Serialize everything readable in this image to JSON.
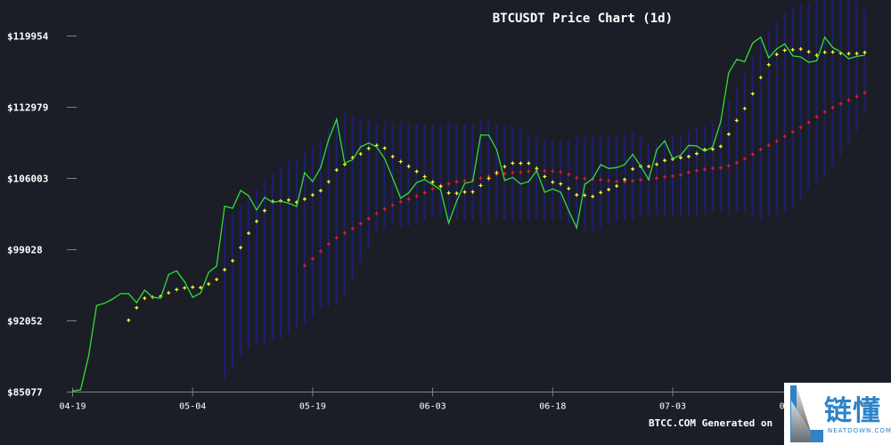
{
  "title": "BTCUSDT Price Chart (1d)",
  "footer": "BTCC.COM Generated on",
  "logo": {
    "cn": "链懂",
    "en": "NEATDOWN.COM"
  },
  "colors": {
    "background": "#1b1e27",
    "price": "#33dd33",
    "short_ma": "#ffff33",
    "long_ma": "#dd2222",
    "band": "#1c1f6e",
    "axis": "#808080",
    "text": "#ffffff",
    "logo_blue": "#2d82c8"
  },
  "chart_data": {
    "type": "line",
    "title": "BTCUSDT Price Chart (1d)",
    "xlabel": "",
    "ylabel": "",
    "x_start": "04-19",
    "x_ticks": [
      "04-19",
      "05-04",
      "05-19",
      "06-03",
      "06-18",
      "07-03",
      "07-18"
    ],
    "y_ticks": [
      "$85077",
      "$92052",
      "$99028",
      "$106003",
      "$112979",
      "$119954"
    ],
    "ylim": [
      85077,
      119954
    ],
    "grid": false,
    "legend": "none",
    "series": [
      {
        "values": [
          85182,
          85295,
          88608,
          93552,
          93779,
          94188,
          94712,
          94712,
          93840,
          95060,
          94363,
          94275,
          96604,
          96952,
          95871,
          94363,
          94773,
          96804,
          97415,
          103282,
          103082,
          104826,
          104302,
          102907,
          104154,
          103666,
          103779,
          103579,
          103256,
          106569,
          105697,
          107066,
          109822,
          111801,
          107502,
          107851,
          109098,
          109473,
          109098,
          107938,
          106046,
          104067,
          104590,
          105610,
          105898,
          105410,
          104887,
          101626,
          103779,
          105523,
          105697,
          110257,
          110257,
          108810,
          105811,
          106107,
          105462,
          105697,
          106770,
          104651,
          104974,
          104651,
          102846,
          101164,
          105410,
          105985,
          107354,
          106979,
          107066,
          107354,
          108374,
          107206,
          105898,
          108810,
          109682,
          107938,
          108287,
          109246,
          109185,
          108662,
          109098,
          111565,
          116361,
          117669,
          117442,
          119273,
          119848,
          117817,
          118689,
          119186,
          118017,
          117904,
          117381,
          117529,
          119848,
          118837,
          118401,
          117730,
          117965,
          118079
        ]
      }
    ]
  }
}
